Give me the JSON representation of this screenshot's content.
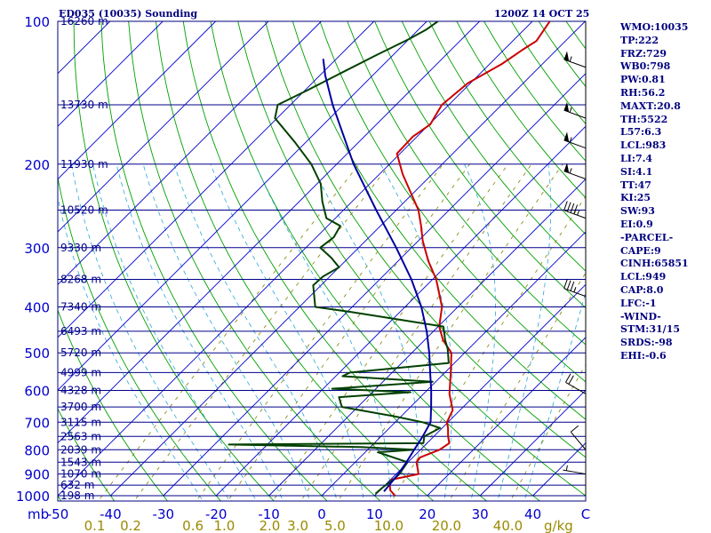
{
  "header": {
    "title_left": "ED035 (10035) Sounding",
    "title_right": "1200Z 14 OCT 25"
  },
  "stats": [
    "WMO:10035",
    "TP:222",
    "FRZ:729",
    "WB0:798",
    "PW:0.81",
    "RH:56.2",
    "MAXT:20.8",
    "TH:5522",
    "L57:6.3",
    "LCL:983",
    "LI:7.4",
    "SI:4.1",
    "TT:47",
    "KI:25",
    "SW:93",
    "EI:0.9",
    "-PARCEL-",
    "CAPE:9",
    "CINH:65851",
    "LCL:949",
    "CAP:8.0",
    "LFC:-1",
    "-WIND-",
    "STM:31/15",
    "SRDS:-98",
    "EHI:-0.6"
  ],
  "colors": {
    "frame": "#000080",
    "isobar": "#00008b",
    "isotherm": "#0000cd",
    "dry_adiabat": "#00a000",
    "moist_adiabat": "#2aa7d6",
    "mixing_ratio": "#808000",
    "temperature": "#cc0000",
    "dewpoint": "#004000",
    "parcel": "#0000a0",
    "xlabel": "#0000cd",
    "mixlabel": "#9a8a00",
    "barb": "#000000"
  },
  "chart_data": {
    "type": "line",
    "title": "ED035 (10035) Sounding",
    "subtitle": "1200Z 14 OCT 25",
    "ylabel": "mb",
    "xlabel": "C",
    "xlim": [
      -50,
      50
    ],
    "ylim": [
      1000,
      100
    ],
    "pressure_ticks": [
      100,
      200,
      300,
      400,
      500,
      600,
      700,
      800,
      900,
      1000
    ],
    "temperature_ticks": [
      -50,
      -40,
      -30,
      -20,
      -10,
      0,
      10,
      20,
      30,
      40
    ],
    "mixing_ratio_ticks": [
      {
        "label": "0.1",
        "value": 0.1
      },
      {
        "label": "0.2",
        "value": 0.2
      },
      {
        "label": "0.6",
        "value": 0.6
      },
      {
        "label": "1.0",
        "value": 1.0
      },
      {
        "label": "2.0",
        "value": 2.0
      },
      {
        "label": "3.0",
        "value": 3.0
      },
      {
        "label": "5.0",
        "value": 5.0
      },
      {
        "label": "10.0",
        "value": 10.0
      },
      {
        "label": "20.0",
        "value": 20.0
      },
      {
        "label": "40.0",
        "value": 40.0
      }
    ],
    "mixing_ratio_unit": "g/kg",
    "height_levels": [
      {
        "p": 100,
        "label": "16260 m"
      },
      {
        "p": 150,
        "label": "13730 m"
      },
      {
        "p": 200,
        "label": "11930 m"
      },
      {
        "p": 250,
        "label": "10520 m"
      },
      {
        "p": 300,
        "label": "9330 m"
      },
      {
        "p": 350,
        "label": "8268 m"
      },
      {
        "p": 400,
        "label": "7340 m"
      },
      {
        "p": 450,
        "label": "6493 m"
      },
      {
        "p": 500,
        "label": "5720 m"
      },
      {
        "p": 550,
        "label": "4999 m"
      },
      {
        "p": 600,
        "label": "4328 m"
      },
      {
        "p": 650,
        "label": "3700 m"
      },
      {
        "p": 700,
        "label": "3115 m"
      },
      {
        "p": 750,
        "label": "2563 m"
      },
      {
        "p": 800,
        "label": "2039 m"
      },
      {
        "p": 850,
        "label": "1543 m"
      },
      {
        "p": 900,
        "label": "1070 m"
      },
      {
        "p": 950,
        "label": "632 m"
      },
      {
        "p": 1000,
        "label": "198 m"
      }
    ],
    "series": [
      {
        "name": "Temperature",
        "points": [
          [
            1000,
            13.9
          ],
          [
            975,
            12.0
          ],
          [
            950,
            10.9
          ],
          [
            925,
            10.2
          ],
          [
            900,
            14.2
          ],
          [
            880,
            13.2
          ],
          [
            850,
            11.6
          ],
          [
            830,
            11.4
          ],
          [
            800,
            13.6
          ],
          [
            775,
            14.2
          ],
          [
            750,
            12.7
          ],
          [
            720,
            11.1
          ],
          [
            700,
            9.8
          ],
          [
            660,
            8.6
          ],
          [
            610,
            4.9
          ],
          [
            550,
            1.1
          ],
          [
            500,
            -2.5
          ],
          [
            470,
            -6.5
          ],
          [
            440,
            -9.8
          ],
          [
            400,
            -13.0
          ],
          [
            350,
            -19.3
          ],
          [
            320,
            -24.3
          ],
          [
            290,
            -29.2
          ],
          [
            270,
            -32.3
          ],
          [
            250,
            -35.8
          ],
          [
            210,
            -45.6
          ],
          [
            190,
            -50.6
          ],
          [
            175,
            -50.8
          ],
          [
            165,
            -49.8
          ],
          [
            150,
            -51.3
          ],
          [
            135,
            -50.5
          ],
          [
            123,
            -47.7
          ],
          [
            115,
            -46.5
          ],
          [
            110,
            -45.5
          ],
          [
            100,
            -46.7
          ]
        ]
      },
      {
        "name": "Dewpoint",
        "points": [
          [
            990,
            9.8
          ],
          [
            960,
            10.0
          ],
          [
            925,
            10.5
          ],
          [
            900,
            10.6
          ],
          [
            850,
            9.9
          ],
          [
            810,
            2.4
          ],
          [
            800,
            8.8
          ],
          [
            790,
            -1.8
          ],
          [
            780,
            -27.3
          ],
          [
            775,
            9.3
          ],
          [
            750,
            8.2
          ],
          [
            720,
            9.6
          ],
          [
            700,
            5.2
          ],
          [
            680,
            -1.3
          ],
          [
            650,
            -13.0
          ],
          [
            620,
            -15.4
          ],
          [
            605,
            -2.8
          ],
          [
            595,
            -18.3
          ],
          [
            575,
            -0.6
          ],
          [
            560,
            -18.7
          ],
          [
            550,
            -18.0
          ],
          [
            525,
            -1.1
          ],
          [
            490,
            -4.0
          ],
          [
            470,
            -6.1
          ],
          [
            440,
            -9.0
          ],
          [
            410,
            -29.2
          ],
          [
            400,
            -37.0
          ],
          [
            360,
            -41.5
          ],
          [
            345,
            -41.3
          ],
          [
            330,
            -40.0
          ],
          [
            315,
            -43.3
          ],
          [
            300,
            -47.3
          ],
          [
            285,
            -46.7
          ],
          [
            270,
            -47.6
          ],
          [
            260,
            -51.7
          ],
          [
            240,
            -55.6
          ],
          [
            220,
            -59.3
          ],
          [
            200,
            -64.8
          ],
          [
            180,
            -72.0
          ],
          [
            160,
            -80.4
          ],
          [
            150,
            -82.4
          ],
          [
            140,
            -79.6
          ],
          [
            128,
            -76.3
          ],
          [
            118,
            -73.2
          ],
          [
            109,
            -70.0
          ],
          [
            104,
            -68.5
          ],
          [
            100,
            -67.9
          ]
        ]
      },
      {
        "name": "Parcel",
        "points": [
          [
            980,
            11.0
          ],
          [
            900,
            10.4
          ],
          [
            850,
            9.7
          ],
          [
            800,
            8.8
          ],
          [
            750,
            7.9
          ],
          [
            700,
            6.7
          ],
          [
            650,
            3.9
          ],
          [
            600,
            0.8
          ],
          [
            550,
            -2.8
          ],
          [
            500,
            -6.7
          ],
          [
            450,
            -11.3
          ],
          [
            400,
            -16.9
          ],
          [
            350,
            -24.0
          ],
          [
            300,
            -32.9
          ],
          [
            250,
            -43.8
          ],
          [
            200,
            -56.8
          ],
          [
            150,
            -72.0
          ],
          [
            130,
            -79.0
          ],
          [
            120,
            -82.5
          ]
        ]
      }
    ],
    "wind_barbs": [
      {
        "p": 125,
        "dir": 290,
        "spd": 55
      },
      {
        "p": 160,
        "dir": 290,
        "spd": 55
      },
      {
        "p": 185,
        "dir": 290,
        "spd": 55
      },
      {
        "p": 215,
        "dir": 290,
        "spd": 55
      },
      {
        "p": 260,
        "dir": 290,
        "spd": 45
      },
      {
        "p": 380,
        "dir": 290,
        "spd": 35
      },
      {
        "p": 610,
        "dir": 300,
        "spd": 20
      },
      {
        "p": 800,
        "dir": 320,
        "spd": 10
      },
      {
        "p": 900,
        "dir": 280,
        "spd": 5
      }
    ]
  }
}
